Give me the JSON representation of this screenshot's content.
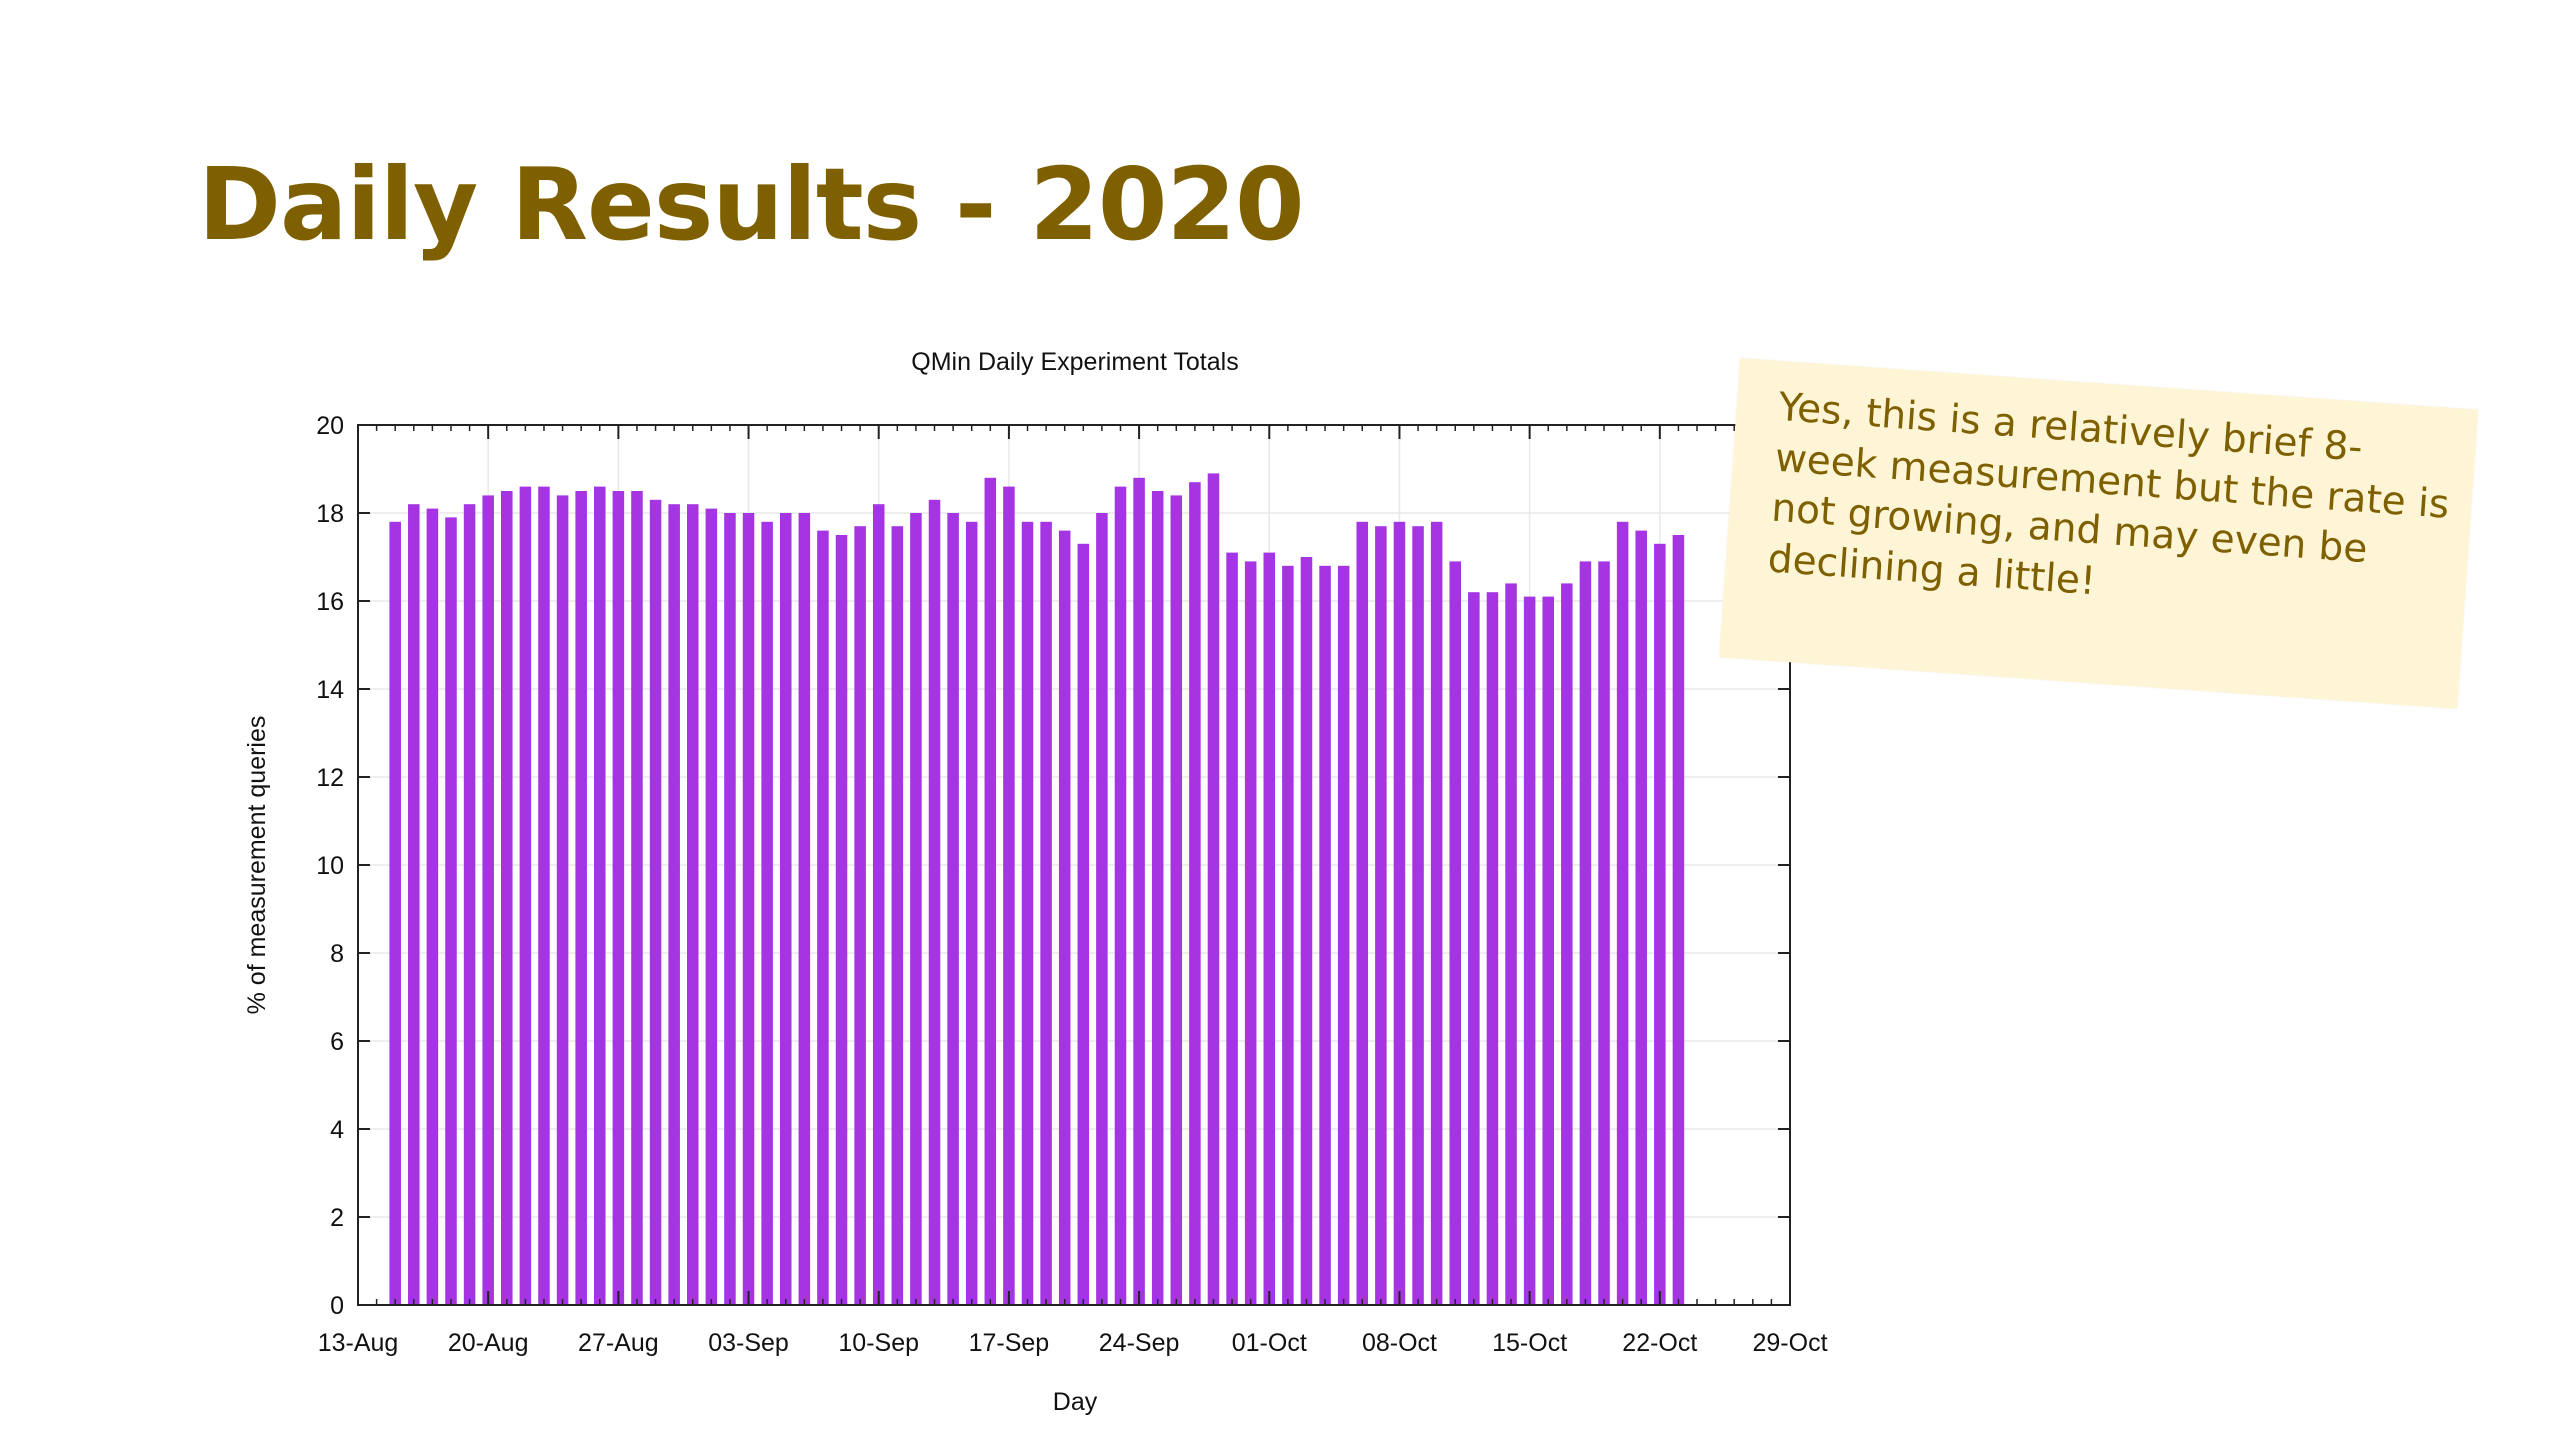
{
  "slide": {
    "title": "Daily Results - 2020"
  },
  "note": {
    "text": "Yes, this is a relatively brief 8-week measurement but the rate is not growing, and may even be declining a little!"
  },
  "colors": {
    "title": "#7f6000",
    "bars": "#a535e3",
    "note_background": "#fef5d6"
  },
  "chart_data": {
    "type": "bar",
    "title": "QMin Daily Experiment Totals",
    "xlabel": "Day",
    "ylabel": "% of measurement queries",
    "ylim": [
      0,
      20
    ],
    "yticks": [
      0,
      2,
      4,
      6,
      8,
      10,
      12,
      14,
      16,
      18,
      20
    ],
    "xlim": [
      "2020-08-13",
      "2020-10-29"
    ],
    "xticks": [
      "13-Aug",
      "20-Aug",
      "27-Aug",
      "03-Sep",
      "10-Sep",
      "17-Sep",
      "24-Sep",
      "01-Oct",
      "08-Oct",
      "15-Oct",
      "22-Oct",
      "29-Oct"
    ],
    "grid": true,
    "series": [
      {
        "x": [
          "2020-08-15",
          "2020-08-16",
          "2020-08-17",
          "2020-08-18",
          "2020-08-19",
          "2020-08-20",
          "2020-08-21",
          "2020-08-22",
          "2020-08-23",
          "2020-08-24",
          "2020-08-25",
          "2020-08-26",
          "2020-08-27",
          "2020-08-28",
          "2020-08-29",
          "2020-08-30",
          "2020-08-31",
          "2020-09-01",
          "2020-09-02",
          "2020-09-03",
          "2020-09-04",
          "2020-09-05",
          "2020-09-06",
          "2020-09-07",
          "2020-09-08",
          "2020-09-09",
          "2020-09-10",
          "2020-09-11",
          "2020-09-12",
          "2020-09-13",
          "2020-09-14",
          "2020-09-15",
          "2020-09-16",
          "2020-09-17",
          "2020-09-18",
          "2020-09-19",
          "2020-09-20",
          "2020-09-21",
          "2020-09-22",
          "2020-09-23",
          "2020-09-24",
          "2020-09-25",
          "2020-09-26",
          "2020-09-27",
          "2020-09-28",
          "2020-09-29",
          "2020-09-30",
          "2020-10-01",
          "2020-10-02",
          "2020-10-03",
          "2020-10-04",
          "2020-10-05",
          "2020-10-06",
          "2020-10-07",
          "2020-10-08",
          "2020-10-09",
          "2020-10-10",
          "2020-10-11",
          "2020-10-12",
          "2020-10-13",
          "2020-10-14",
          "2020-10-15",
          "2020-10-16",
          "2020-10-17",
          "2020-10-18",
          "2020-10-19",
          "2020-10-20",
          "2020-10-21",
          "2020-10-22",
          "2020-10-23"
        ],
        "values": [
          17.8,
          18.2,
          18.1,
          17.9,
          18.2,
          18.4,
          18.5,
          18.6,
          18.6,
          18.4,
          18.5,
          18.6,
          18.5,
          18.5,
          18.3,
          18.2,
          18.2,
          18.1,
          18.0,
          18.0,
          17.8,
          18.0,
          18.0,
          17.6,
          17.5,
          17.7,
          18.2,
          17.7,
          18.0,
          18.3,
          18.0,
          17.8,
          18.8,
          18.6,
          17.8,
          17.8,
          17.6,
          17.3,
          18.0,
          18.6,
          18.8,
          18.5,
          18.4,
          18.7,
          18.9,
          17.1,
          16.9,
          17.1,
          16.8,
          17.0,
          16.8,
          16.8,
          17.8,
          17.7,
          17.8,
          17.7,
          17.8,
          16.9,
          16.2,
          16.2,
          16.4,
          16.1,
          16.1,
          16.4,
          16.9,
          16.9,
          17.8,
          17.6,
          17.3,
          17.5
        ]
      }
    ]
  }
}
